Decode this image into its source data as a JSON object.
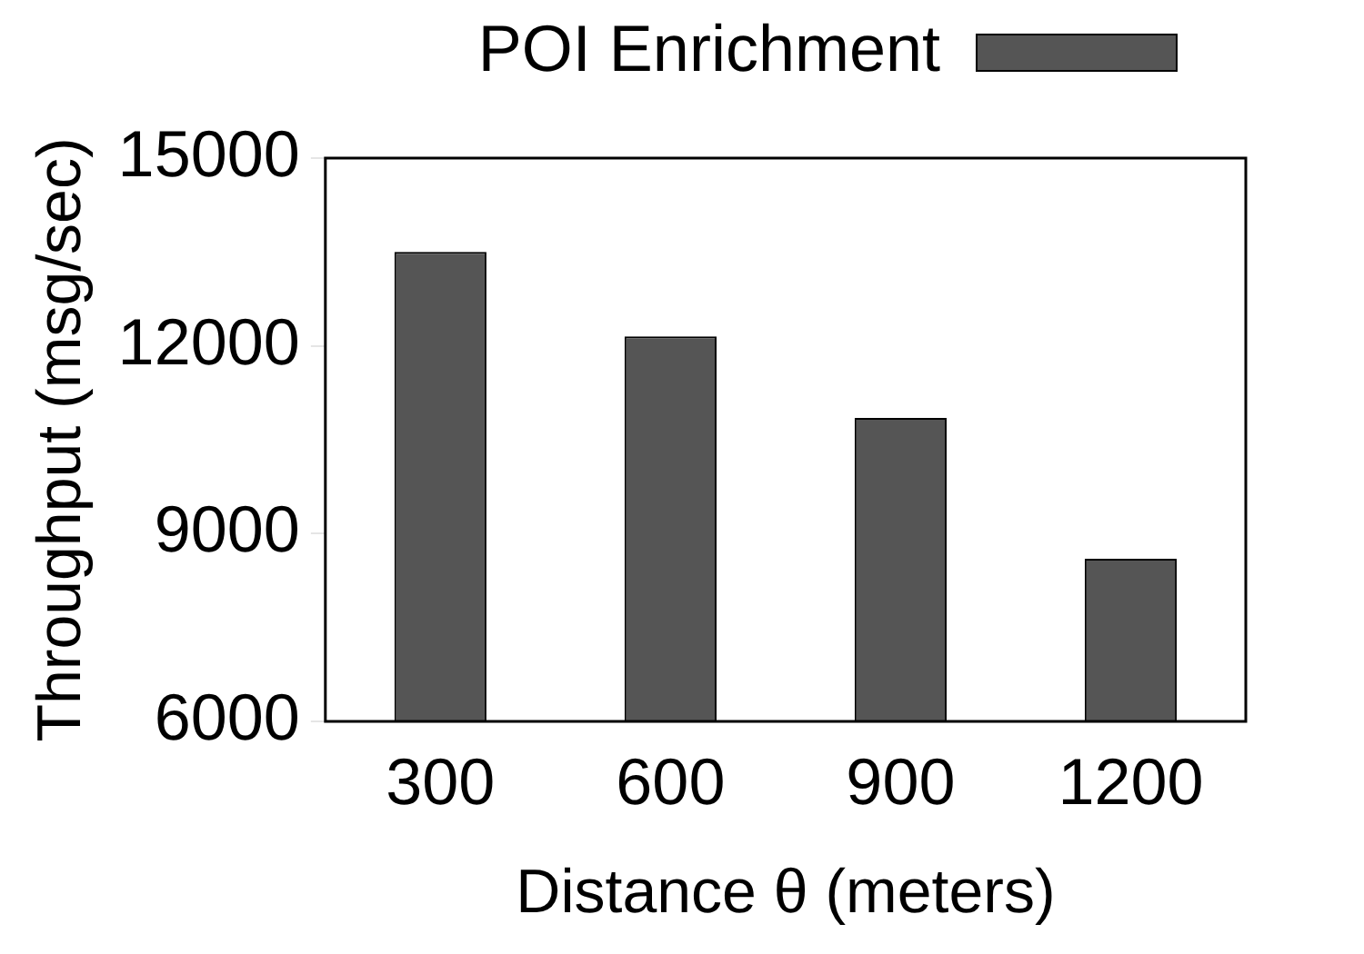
{
  "chart_data": {
    "type": "bar",
    "xlabel": "Distance θ (meters)",
    "ylabel": "Throughput (msg/sec)",
    "categories": [
      "300",
      "600",
      "900",
      "1200"
    ],
    "series": [
      {
        "name": "POI Enrichment",
        "color": "#555555",
        "values": [
          13500,
          12150,
          10850,
          8600
        ]
      }
    ],
    "ylim": [
      6000,
      15000
    ],
    "yticks": [
      6000,
      9000,
      12000,
      15000
    ],
    "grid": false,
    "legend": "top right"
  }
}
